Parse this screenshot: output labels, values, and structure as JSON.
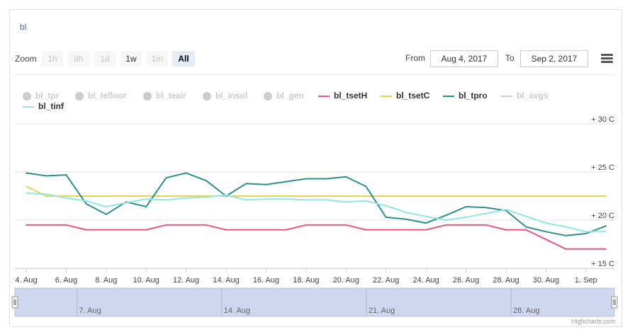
{
  "title": "bl",
  "toolbar": {
    "zoom_label": "Zoom",
    "buttons": [
      "1h",
      "8h",
      "1d",
      "1w",
      "1m",
      "All"
    ],
    "from_label": "From",
    "from_value": "Aug 4, 2017",
    "to_label": "To",
    "to_value": "Sep 2, 2017"
  },
  "credit": "Highcharts.com",
  "chart_data": {
    "type": "line",
    "ylabels": [
      "+ 15 C",
      "+ 20 C",
      "+ 25 C",
      "+ 30 C"
    ],
    "yticks": [
      15,
      20,
      25,
      30
    ],
    "ylim": [
      15,
      30
    ],
    "xlim": [
      "2017-08-04",
      "2017-09-02"
    ],
    "xtick_labels": [
      "4. Aug",
      "6. Aug",
      "8. Aug",
      "10. Aug",
      "12. Aug",
      "14. Aug",
      "16. Aug",
      "18. Aug",
      "20. Aug",
      "22. Aug",
      "24. Aug",
      "26. Aug",
      "28. Aug",
      "30. Aug",
      "1. Sep"
    ],
    "xticks": [
      "2017-08-04",
      "2017-08-06",
      "2017-08-08",
      "2017-08-10",
      "2017-08-12",
      "2017-08-14",
      "2017-08-16",
      "2017-08-18",
      "2017-08-20",
      "2017-08-22",
      "2017-08-24",
      "2017-08-26",
      "2017-08-28",
      "2017-08-30",
      "2017-09-01"
    ],
    "navigator_labels": [
      "7. Aug",
      "14. Aug",
      "21. Aug",
      "28. Aug"
    ],
    "navigator_ticks": [
      "2017-08-07",
      "2017-08-14",
      "2017-08-21",
      "2017-08-28"
    ],
    "legend": [
      {
        "name": "bl_tpr",
        "visible": false,
        "symbol": "dot"
      },
      {
        "name": "bl_tefloor",
        "visible": false,
        "symbol": "dot"
      },
      {
        "name": "bl_teair",
        "visible": false,
        "symbol": "dot"
      },
      {
        "name": "bl_insol",
        "visible": false,
        "symbol": "dot"
      },
      {
        "name": "bl_gen",
        "visible": false,
        "symbol": "dot"
      },
      {
        "name": "bl_tsetH",
        "visible": true,
        "symbol": "line",
        "color": "#e8577b"
      },
      {
        "name": "bl_tsetC",
        "visible": true,
        "symbol": "line",
        "color": "#e4d354"
      },
      {
        "name": "bl_tpro",
        "visible": true,
        "symbol": "line",
        "color": "#2b908f"
      },
      {
        "name": "bl_avgs",
        "visible": false,
        "symbol": "line",
        "color": "#cccccc"
      },
      {
        "name": "bl_tinf",
        "visible": true,
        "symbol": "line",
        "color": "#91e8e1"
      }
    ],
    "series": [
      {
        "name": "bl_tsetH",
        "color": "#e8577b",
        "x": [
          "2017-08-04",
          "2017-08-06",
          "2017-08-07",
          "2017-08-10",
          "2017-08-11",
          "2017-08-13",
          "2017-08-14",
          "2017-08-17",
          "2017-08-18",
          "2017-08-20",
          "2017-08-21",
          "2017-08-24",
          "2017-08-25",
          "2017-08-27",
          "2017-08-28",
          "2017-08-29",
          "2017-08-31",
          "2017-09-02"
        ],
        "y": [
          19.5,
          19.5,
          19.0,
          19.0,
          19.5,
          19.5,
          19.0,
          19.0,
          19.5,
          19.5,
          19.0,
          19.0,
          19.5,
          19.5,
          19.0,
          19.0,
          17.0,
          17.0
        ]
      },
      {
        "name": "bl_tsetC",
        "color": "#e4d354",
        "x": [
          "2017-08-04",
          "2017-08-05",
          "2017-09-02"
        ],
        "y": [
          23.5,
          22.5,
          22.5
        ]
      },
      {
        "name": "bl_tpro",
        "color": "#2b908f",
        "x": [
          "2017-08-04",
          "2017-08-05",
          "2017-08-06",
          "2017-08-07",
          "2017-08-08",
          "2017-08-09",
          "2017-08-10",
          "2017-08-11",
          "2017-08-12",
          "2017-08-13",
          "2017-08-14",
          "2017-08-15",
          "2017-08-16",
          "2017-08-17",
          "2017-08-18",
          "2017-08-19",
          "2017-08-20",
          "2017-08-21",
          "2017-08-22",
          "2017-08-23",
          "2017-08-24",
          "2017-08-25",
          "2017-08-26",
          "2017-08-27",
          "2017-08-28",
          "2017-08-29",
          "2017-08-30",
          "2017-08-31",
          "2017-09-01",
          "2017-09-02"
        ],
        "y": [
          24.9,
          24.6,
          24.7,
          21.7,
          20.6,
          21.9,
          21.4,
          24.4,
          24.9,
          24.1,
          22.5,
          23.8,
          23.7,
          24.0,
          24.3,
          24.3,
          24.5,
          23.5,
          20.3,
          20.1,
          19.7,
          20.5,
          21.4,
          21.3,
          21.0,
          19.3,
          18.8,
          18.4,
          18.6,
          19.4
        ]
      },
      {
        "name": "bl_tinf",
        "color": "#91e8e1",
        "x": [
          "2017-08-04",
          "2017-08-05",
          "2017-08-06",
          "2017-08-07",
          "2017-08-08",
          "2017-08-09",
          "2017-08-10",
          "2017-08-11",
          "2017-08-12",
          "2017-08-13",
          "2017-08-14",
          "2017-08-15",
          "2017-08-16",
          "2017-08-17",
          "2017-08-18",
          "2017-08-19",
          "2017-08-20",
          "2017-08-21",
          "2017-08-22",
          "2017-08-23",
          "2017-08-24",
          "2017-08-25",
          "2017-08-26",
          "2017-08-27",
          "2017-08-28",
          "2017-08-29",
          "2017-08-30",
          "2017-08-31",
          "2017-09-01",
          "2017-09-02"
        ],
        "y": [
          22.8,
          22.7,
          22.3,
          22.0,
          21.4,
          21.8,
          22.2,
          22.1,
          22.3,
          22.4,
          22.6,
          22.1,
          22.2,
          22.2,
          22.1,
          22.1,
          21.9,
          22.0,
          21.5,
          20.8,
          20.4,
          20.0,
          20.3,
          20.7,
          21.1,
          20.4,
          19.7,
          19.3,
          18.8,
          18.8
        ]
      }
    ]
  }
}
